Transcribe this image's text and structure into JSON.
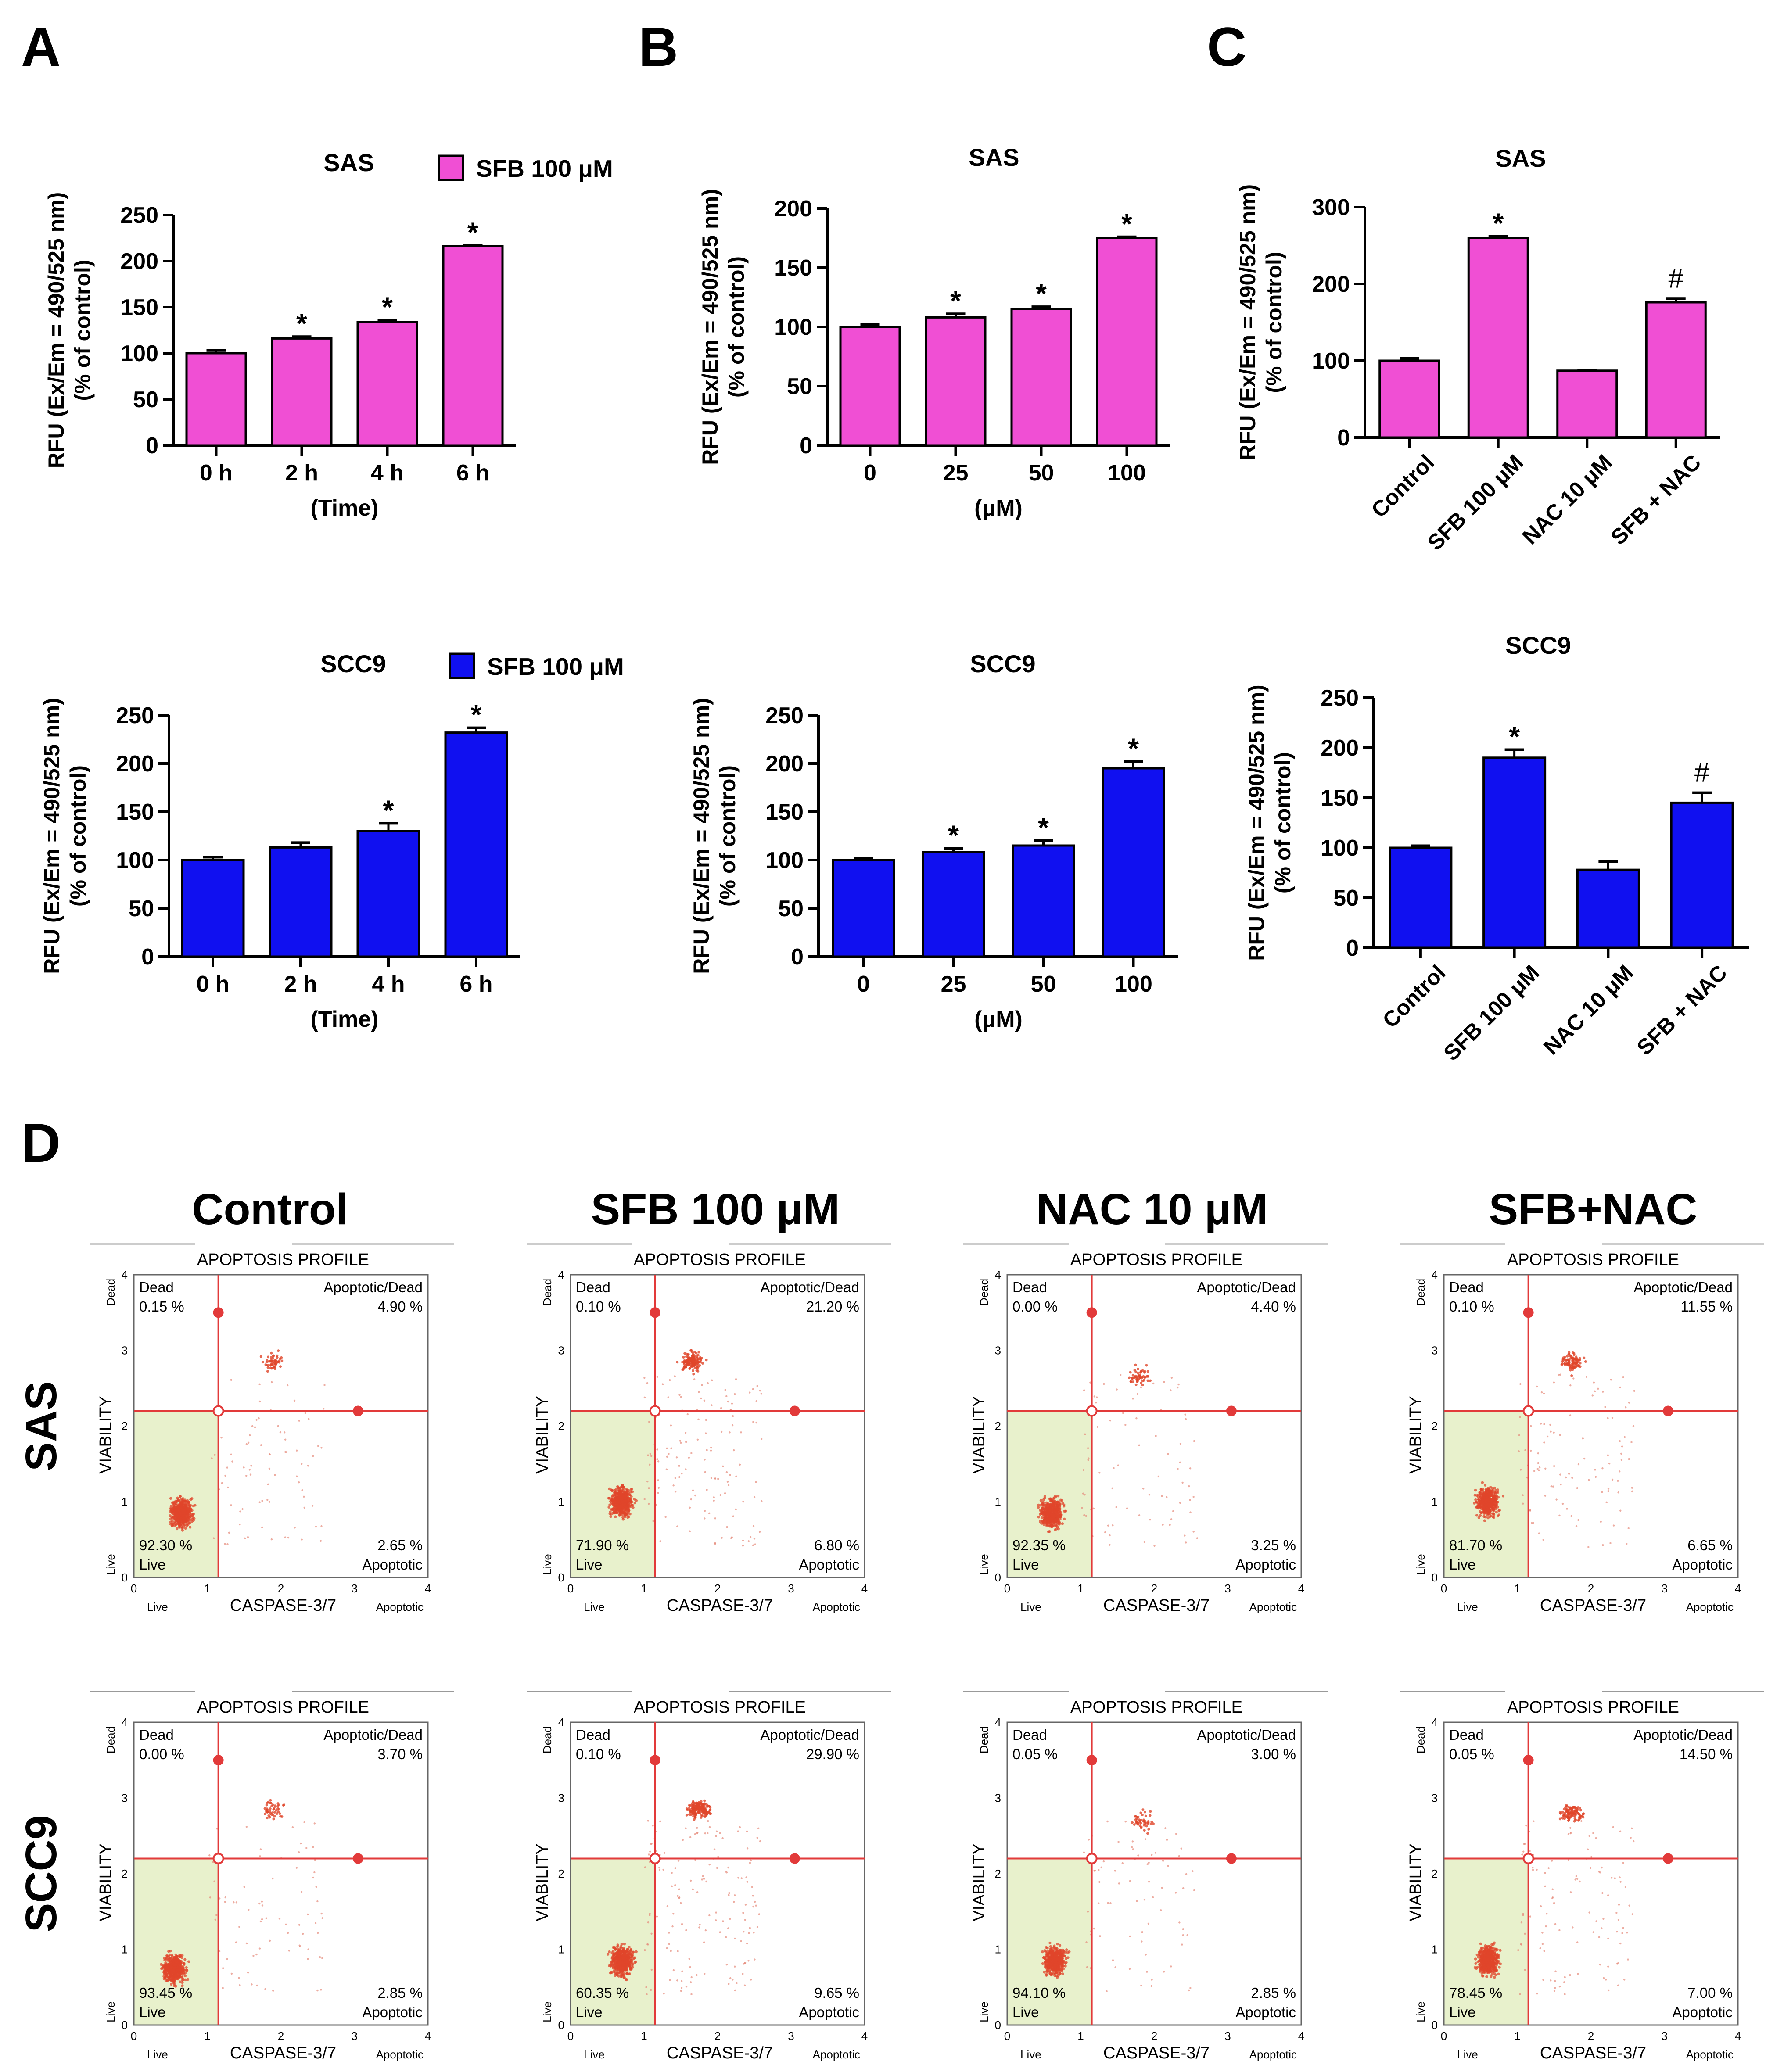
{
  "panel_letters": [
    "A",
    "B",
    "C",
    "D"
  ],
  "colors": {
    "sas_bar": "#f04fd4",
    "scc9_bar": "#1010f0",
    "quadrant_line": "#e23a3a",
    "live_region": "#e8f1cc",
    "dot": "#e23a3a",
    "tick": "#777777"
  },
  "chart_data": [
    {
      "id": "A-SAS",
      "type": "bar",
      "title": "SAS",
      "legend": "SFB 100 μM",
      "legend_position": "top-right",
      "ylabel_lines": [
        "RFU (Ex/Em = 490/525 nm)",
        "(% of control)"
      ],
      "xlabel": "(Time)",
      "categories": [
        "0 h",
        "2 h",
        "4 h",
        "6 h"
      ],
      "values": [
        100,
        116,
        134,
        216
      ],
      "errors": [
        3,
        2,
        2,
        1
      ],
      "significance": [
        "",
        "*",
        "*",
        "*"
      ],
      "ylim": [
        0,
        250
      ],
      "yticks": [
        0,
        50,
        100,
        150,
        200,
        250
      ],
      "color_key": "sas_bar"
    },
    {
      "id": "B-SAS",
      "type": "bar",
      "title": "SAS",
      "ylabel_lines": [
        "RFU (Ex/Em = 490/525 nm)",
        "(% of control)"
      ],
      "xlabel": "(μM)",
      "categories": [
        "0",
        "25",
        "50",
        "100"
      ],
      "values": [
        100,
        108,
        115,
        175
      ],
      "errors": [
        2,
        3,
        2,
        1
      ],
      "significance": [
        "",
        "*",
        "*",
        "*"
      ],
      "ylim": [
        0,
        200
      ],
      "yticks": [
        0,
        50,
        100,
        150,
        200
      ],
      "color_key": "sas_bar"
    },
    {
      "id": "C-SAS",
      "type": "bar",
      "title": "SAS",
      "ylabel_lines": [
        "RFU (Ex/Em = 490/525 nm)",
        "(% of control)"
      ],
      "xlabel": "",
      "categories": [
        "Control",
        "SFB 100 μM",
        "NAC 10 μM",
        "SFB + NAC"
      ],
      "values": [
        100,
        260,
        87,
        176
      ],
      "errors": [
        3,
        2,
        1,
        5
      ],
      "significance": [
        "",
        "*",
        "",
        "#"
      ],
      "ylim": [
        0,
        300
      ],
      "yticks": [
        0,
        100,
        200,
        300
      ],
      "color_key": "sas_bar",
      "rotate_labels": true
    },
    {
      "id": "A-SCC9",
      "type": "bar",
      "title": "SCC9",
      "legend": "SFB 100 μM",
      "legend_position": "top-right",
      "ylabel_lines": [
        "RFU (Ex/Em = 490/525 nm)",
        "(% of control)"
      ],
      "xlabel": "(Time)",
      "categories": [
        "0 h",
        "2 h",
        "4 h",
        "6 h"
      ],
      "values": [
        100,
        113,
        130,
        232
      ],
      "errors": [
        3,
        5,
        8,
        5
      ],
      "significance": [
        "",
        "",
        "*",
        "*"
      ],
      "ylim": [
        0,
        250
      ],
      "yticks": [
        0,
        50,
        100,
        150,
        200,
        250
      ],
      "color_key": "scc9_bar"
    },
    {
      "id": "B-SCC9",
      "type": "bar",
      "title": "SCC9",
      "ylabel_lines": [
        "RFU (Ex/Em = 490/525 nm)",
        "(% of control)"
      ],
      "xlabel": "(μM)",
      "categories": [
        "0",
        "25",
        "50",
        "100"
      ],
      "values": [
        100,
        108,
        115,
        195
      ],
      "errors": [
        2,
        4,
        5,
        7
      ],
      "significance": [
        "",
        "*",
        "*",
        "*"
      ],
      "ylim": [
        0,
        250
      ],
      "yticks": [
        0,
        50,
        100,
        150,
        200,
        250
      ],
      "color_key": "scc9_bar"
    },
    {
      "id": "C-SCC9",
      "type": "bar",
      "title": "SCC9",
      "ylabel_lines": [
        "RFU (Ex/Em = 490/525 nm)",
        "(% of control)"
      ],
      "xlabel": "",
      "categories": [
        "Control",
        "SFB 100 μM",
        "NAC 10 μM",
        "SFB + NAC"
      ],
      "values": [
        100,
        190,
        78,
        145
      ],
      "errors": [
        2,
        8,
        8,
        10
      ],
      "significance": [
        "",
        "*",
        "",
        "#"
      ],
      "ylim": [
        0,
        250
      ],
      "yticks": [
        0,
        50,
        100,
        150,
        200,
        250
      ],
      "color_key": "scc9_bar",
      "rotate_labels": true
    }
  ],
  "flow": {
    "column_titles": [
      "Control",
      "SFB 100 μM",
      "NAC 10 μM",
      "SFB+NAC"
    ],
    "row_labels": [
      "SAS",
      "SCC9"
    ],
    "plot_title": "APOPTOSIS PROFILE",
    "xlabel": "CASPASE-3/7",
    "ylabel": "VIABILITY",
    "x_left_word": "Live",
    "x_right_word": "Apoptotic",
    "y_bottom_word": "Live",
    "y_top_word": "Dead",
    "tick_values": [
      "0",
      "1",
      "2",
      "3",
      "4"
    ],
    "quadrant_names": {
      "dead": "Dead",
      "apoptotic_dead": "Apoptotic/Dead",
      "live": "Live",
      "apoptotic": "Apoptotic"
    },
    "gate_x": 1.15,
    "gate_y": 2.2,
    "axis_range": [
      0,
      4
    ],
    "plots": [
      {
        "row": "SAS",
        "condition": "Control",
        "dead": "0.15 %",
        "apoptotic_dead": "4.90 %",
        "live": "92.30 %",
        "apoptotic": "2.65 %",
        "main_cluster": [
          0.65,
          0.85
        ],
        "upper_cluster": [
          1.9,
          2.85
        ],
        "upper_weight": 0.15
      },
      {
        "row": "SAS",
        "condition": "SFB 100 μM",
        "dead": "0.10 %",
        "apoptotic_dead": "21.20 %",
        "live": "71.90 %",
        "apoptotic": "6.80 %",
        "main_cluster": [
          0.7,
          1.0
        ],
        "upper_cluster": [
          1.65,
          2.85
        ],
        "upper_weight": 0.6
      },
      {
        "row": "SAS",
        "condition": "NAC 10 μM",
        "dead": "0.00 %",
        "apoptotic_dead": "4.40 %",
        "live": "92.35 %",
        "apoptotic": "3.25 %",
        "main_cluster": [
          0.6,
          0.85
        ],
        "upper_cluster": [
          1.8,
          2.65
        ],
        "upper_weight": 0.15
      },
      {
        "row": "SAS",
        "condition": "SFB+NAC",
        "dead": "0.10 %",
        "apoptotic_dead": "11.55 %",
        "live": "81.70 %",
        "apoptotic": "6.65 %",
        "main_cluster": [
          0.6,
          1.0
        ],
        "upper_cluster": [
          1.75,
          2.85
        ],
        "upper_weight": 0.35
      },
      {
        "row": "SCC9",
        "condition": "Control",
        "dead": "0.00 %",
        "apoptotic_dead": "3.70 %",
        "live": "93.45 %",
        "apoptotic": "2.85 %",
        "main_cluster": [
          0.55,
          0.75
        ],
        "upper_cluster": [
          1.9,
          2.85
        ],
        "upper_weight": 0.12
      },
      {
        "row": "SCC9",
        "condition": "SFB 100 μM",
        "dead": "0.10 %",
        "apoptotic_dead": "29.90 %",
        "live": "60.35 %",
        "apoptotic": "9.65 %",
        "main_cluster": [
          0.7,
          0.85
        ],
        "upper_cluster": [
          1.75,
          2.85
        ],
        "upper_weight": 0.7
      },
      {
        "row": "SCC9",
        "condition": "NAC 10 μM",
        "dead": "0.05 %",
        "apoptotic_dead": "3.00 %",
        "live": "94.10 %",
        "apoptotic": "2.85 %",
        "main_cluster": [
          0.65,
          0.85
        ],
        "upper_cluster": [
          1.85,
          2.7
        ],
        "upper_weight": 0.12
      },
      {
        "row": "SCC9",
        "condition": "SFB+NAC",
        "dead": "0.05 %",
        "apoptotic_dead": "14.50 %",
        "live": "78.45 %",
        "apoptotic": "7.00 %",
        "main_cluster": [
          0.6,
          0.85
        ],
        "upper_cluster": [
          1.75,
          2.8
        ],
        "upper_weight": 0.4
      }
    ]
  }
}
